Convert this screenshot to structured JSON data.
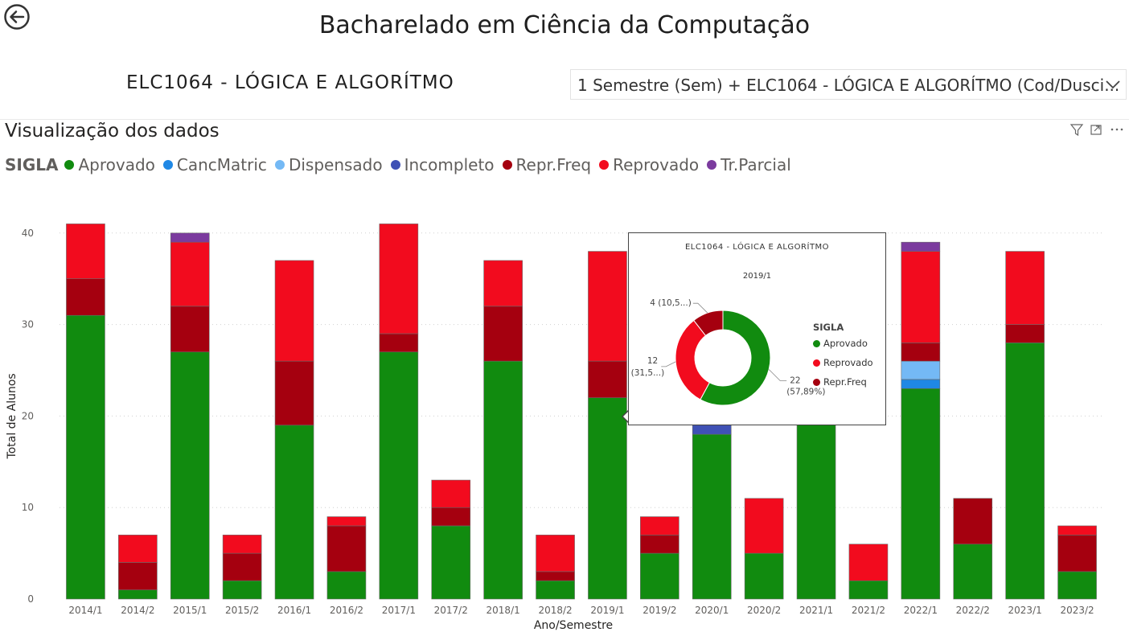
{
  "page": {
    "title": "Bacharelado em Ciência da Computação",
    "course": "ELC1064 - LÓGICA E ALGORÍTMO",
    "slicer_value": "1 Semestre (Sem) + ELC1064 - LÓGICA E ALGORÍTMO (Cod/Dusci...",
    "visual_title": "Visualização dos dados"
  },
  "legend": {
    "title": "SIGLA",
    "items": [
      {
        "label": "Aprovado",
        "color": "#118b0f"
      },
      {
        "label": "CancMatric",
        "color": "#1f88e5"
      },
      {
        "label": "Dispensado",
        "color": "#74b9f5"
      },
      {
        "label": "Incompleto",
        "color": "#3f51b5"
      },
      {
        "label": "Repr.Freq",
        "color": "#a5000f"
      },
      {
        "label": "Reprovado",
        "color": "#f20b1e"
      },
      {
        "label": "Tr.Parcial",
        "color": "#7b3b9e"
      }
    ]
  },
  "chart_data": {
    "type": "bar",
    "stacked": true,
    "xlabel": "Ano/Semestre",
    "ylabel": "Total de Alunos",
    "ylim": [
      0,
      41
    ],
    "yticks": [
      0,
      10,
      20,
      30,
      40
    ],
    "categories": [
      "2014/1",
      "2014/2",
      "2015/1",
      "2015/2",
      "2016/1",
      "2016/2",
      "2017/1",
      "2017/2",
      "2018/1",
      "2018/2",
      "2019/1",
      "2019/2",
      "2020/1",
      "2020/2",
      "2021/1",
      "2021/2",
      "2022/1",
      "2022/2",
      "2023/1",
      "2023/2"
    ],
    "series": [
      {
        "name": "Aprovado",
        "color": "#118b0f",
        "values": [
          31,
          1,
          27,
          2,
          19,
          3,
          27,
          8,
          26,
          2,
          22,
          5,
          18,
          5,
          20,
          2,
          23,
          6,
          28,
          3
        ]
      },
      {
        "name": "CancMatric",
        "color": "#1f88e5",
        "values": [
          0,
          0,
          0,
          0,
          0,
          0,
          0,
          0,
          0,
          0,
          0,
          0,
          0,
          0,
          0,
          0,
          1,
          0,
          0,
          0
        ]
      },
      {
        "name": "Dispensado",
        "color": "#74b9f5",
        "values": [
          0,
          0,
          0,
          0,
          0,
          0,
          0,
          0,
          0,
          0,
          0,
          0,
          0,
          0,
          0,
          0,
          2,
          0,
          0,
          0
        ]
      },
      {
        "name": "Incompleto",
        "color": "#3f51b5",
        "values": [
          0,
          0,
          0,
          0,
          0,
          0,
          0,
          0,
          0,
          0,
          0,
          0,
          1,
          0,
          0,
          0,
          0,
          0,
          0,
          0
        ]
      },
      {
        "name": "Repr.Freq",
        "color": "#a5000f",
        "values": [
          4,
          3,
          5,
          3,
          7,
          5,
          2,
          2,
          6,
          1,
          4,
          2,
          0,
          0,
          0,
          0,
          2,
          5,
          2,
          4
        ]
      },
      {
        "name": "Reprovado",
        "color": "#f20b1e",
        "values": [
          6,
          3,
          7,
          2,
          11,
          1,
          12,
          3,
          5,
          4,
          12,
          2,
          0,
          6,
          0,
          4,
          10,
          0,
          8,
          1
        ]
      },
      {
        "name": "Tr.Parcial",
        "color": "#7b3b9e",
        "values": [
          0,
          0,
          1,
          0,
          0,
          0,
          0,
          0,
          0,
          0,
          0,
          0,
          0,
          0,
          0,
          0,
          1,
          0,
          0,
          0
        ]
      }
    ]
  },
  "tooltip": {
    "title": "ELC1064 - LÓGICA E ALGORÍTMO",
    "subtitle": "2019/1",
    "legend_title": "SIGLA",
    "chart_data": {
      "type": "pie",
      "donut": true,
      "slices": [
        {
          "name": "Aprovado",
          "value": 22,
          "label": "22",
          "percent_label": "(57,89%)",
          "color": "#118b0f"
        },
        {
          "name": "Reprovado",
          "value": 12,
          "label": "12",
          "percent_label": "(31,5...)",
          "color": "#f20b1e"
        },
        {
          "name": "Repr.Freq",
          "value": 4,
          "label": "4 (10,5...)",
          "percent_label": "",
          "color": "#a5000f"
        }
      ]
    }
  }
}
